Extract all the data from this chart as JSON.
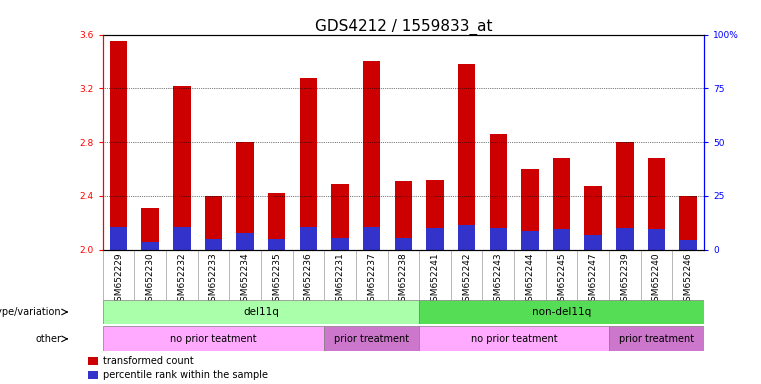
{
  "title": "GDS4212 / 1559833_at",
  "samples": [
    "GSM652229",
    "GSM652230",
    "GSM652232",
    "GSM652233",
    "GSM652234",
    "GSM652235",
    "GSM652236",
    "GSM652231",
    "GSM652237",
    "GSM652238",
    "GSM652241",
    "GSM652242",
    "GSM652243",
    "GSM652244",
    "GSM652245",
    "GSM652247",
    "GSM652239",
    "GSM652240",
    "GSM652246"
  ],
  "red_values": [
    3.55,
    2.31,
    3.22,
    2.4,
    2.8,
    2.42,
    3.28,
    2.49,
    3.4,
    2.51,
    2.52,
    3.38,
    2.86,
    2.6,
    2.68,
    2.47,
    2.8,
    2.68,
    2.4
  ],
  "blue_values": [
    2.17,
    2.06,
    2.17,
    2.08,
    2.12,
    2.08,
    2.17,
    2.09,
    2.17,
    2.09,
    2.16,
    2.18,
    2.16,
    2.14,
    2.15,
    2.11,
    2.16,
    2.15,
    2.07
  ],
  "ylim_left": [
    2.0,
    3.6
  ],
  "yticks_left": [
    2.0,
    2.4,
    2.8,
    3.2,
    3.6
  ],
  "yticks_right": [
    0,
    25,
    50,
    75,
    100
  ],
  "bar_color_red": "#cc0000",
  "bar_color_blue": "#3333cc",
  "bar_width": 0.55,
  "genotype_groups": [
    {
      "label": "del11q",
      "start": 0,
      "end": 10,
      "color": "#aaffaa"
    },
    {
      "label": "non-del11q",
      "start": 10,
      "end": 19,
      "color": "#55dd55"
    }
  ],
  "other_groups": [
    {
      "label": "no prior teatment",
      "start": 0,
      "end": 7,
      "color": "#ffaaff"
    },
    {
      "label": "prior treatment",
      "start": 7,
      "end": 10,
      "color": "#cc77cc"
    },
    {
      "label": "no prior teatment",
      "start": 10,
      "end": 16,
      "color": "#ffaaff"
    },
    {
      "label": "prior treatment",
      "start": 16,
      "end": 19,
      "color": "#cc77cc"
    }
  ],
  "genotype_label": "genotype/variation",
  "other_label": "other",
  "legend_red": "transformed count",
  "legend_blue": "percentile rank within the sample",
  "title_fontsize": 11,
  "tick_fontsize": 6.5,
  "label_fontsize": 7.5,
  "annotation_fontsize": 7,
  "grid_linestyle": "dotted"
}
